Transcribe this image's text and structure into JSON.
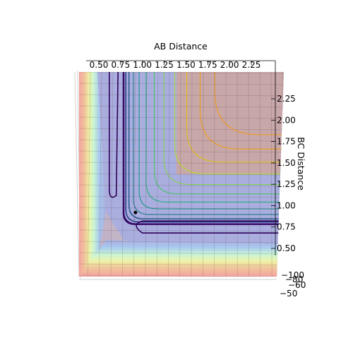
{
  "chart_data": {
    "type": "contour",
    "projection": "3d-surface viewed from above",
    "title": "",
    "xlabel": "AB Distance",
    "ylabel": "BC Distance",
    "xlim": [
      0.35,
      2.5
    ],
    "ylim": [
      0.35,
      2.5
    ],
    "x_ticks": [
      "0.50",
      "0.75",
      "1.00",
      "1.25",
      "1.50",
      "1.75",
      "2.00",
      "2.25"
    ],
    "y_ticks": [
      "0.50",
      "0.75",
      "1.00",
      "1.25",
      "1.50",
      "1.75",
      "2.00",
      "2.25"
    ],
    "z_ticks": [
      "−100",
      "−80",
      "−60",
      "−50"
    ],
    "contour_levels": [
      -100,
      -90,
      -80,
      -70,
      -60,
      -50,
      -40,
      -30,
      -20,
      -10,
      0,
      10,
      20
    ],
    "colormap": "viridis",
    "surface_colormap": "jet",
    "marker": {
      "x": 0.92,
      "y": 0.92
    },
    "grid": true
  }
}
